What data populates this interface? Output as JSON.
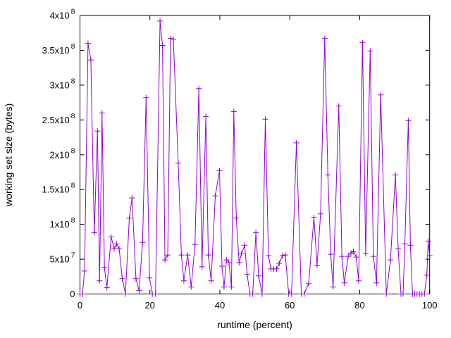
{
  "figure": {
    "background": "#ffffff",
    "axis_color": "#000000"
  },
  "chart_data": {
    "type": "line",
    "title": "",
    "xlabel": "runtime (percent)",
    "ylabel": "working set size (bytes)",
    "xlim": [
      0,
      100
    ],
    "ylim": [
      0,
      400000000.0
    ],
    "grid": false,
    "legend": "none",
    "line_color": "#9400d3",
    "marker": "plus",
    "x_ticks": [
      {
        "v": 0,
        "label": "0"
      },
      {
        "v": 20,
        "label": "20"
      },
      {
        "v": 40,
        "label": "40"
      },
      {
        "v": 60,
        "label": "60"
      },
      {
        "v": 80,
        "label": "80"
      },
      {
        "v": 100,
        "label": "100"
      }
    ],
    "y_ticks": [
      {
        "v": 0,
        "label": "0"
      },
      {
        "v": 50000000.0,
        "label": "5x10^7"
      },
      {
        "v": 100000000.0,
        "label": "1x10^8"
      },
      {
        "v": 150000000.0,
        "label": "1.5x10^8"
      },
      {
        "v": 200000000.0,
        "label": "2x10^8"
      },
      {
        "v": 250000000.0,
        "label": "2.5x10^8"
      },
      {
        "v": 300000000.0,
        "label": "3x10^8"
      },
      {
        "v": 350000000.0,
        "label": "3.5x10^8"
      },
      {
        "v": 400000000.0,
        "label": "4x10^8"
      }
    ],
    "series": [
      {
        "name": "working set size",
        "points": [
          [
            0,
            0
          ],
          [
            0.7,
            0
          ],
          [
            1.3,
            33000000.0
          ],
          [
            2.3,
            360000000.0
          ],
          [
            3.1,
            336000000.0
          ],
          [
            4.1,
            88000000.0
          ],
          [
            5.0,
            234000000.0
          ],
          [
            5.6,
            19000000.0
          ],
          [
            6.3,
            260000000.0
          ],
          [
            7.0,
            38000000.0
          ],
          [
            7.7,
            9000000.0
          ],
          [
            8.9,
            82000000.0
          ],
          [
            9.8,
            65000000.0
          ],
          [
            10.5,
            72000000.0
          ],
          [
            11.2,
            65000000.0
          ],
          [
            12.1,
            22000000.0
          ],
          [
            13.0,
            0
          ],
          [
            14.1,
            109000000.0
          ],
          [
            14.9,
            138000000.0
          ],
          [
            16.0,
            22000000.0
          ],
          [
            16.9,
            5000000.0
          ],
          [
            17.9,
            74000000.0
          ],
          [
            18.9,
            282000000.0
          ],
          [
            19.9,
            23000000.0
          ],
          [
            20.7,
            0
          ],
          [
            21.6,
            0
          ],
          [
            22.9,
            392000000.0
          ],
          [
            23.6,
            357000000.0
          ],
          [
            24.3,
            49000000.0
          ],
          [
            25.1,
            56000000.0
          ],
          [
            25.9,
            367000000.0
          ],
          [
            26.7,
            366000000.0
          ],
          [
            28.1,
            188000000.0
          ],
          [
            29.0,
            56000000.0
          ],
          [
            29.7,
            19000000.0
          ],
          [
            30.8,
            56000000.0
          ],
          [
            31.8,
            10000000.0
          ],
          [
            32.9,
            71000000.0
          ],
          [
            34.0,
            295000000.0
          ],
          [
            34.9,
            39000000.0
          ],
          [
            36.0,
            255000000.0
          ],
          [
            36.7,
            56000000.0
          ],
          [
            37.5,
            19000000.0
          ],
          [
            38.7,
            141000000.0
          ],
          [
            39.9,
            177000000.0
          ],
          [
            40.6,
            40000000.0
          ],
          [
            41.2,
            10000000.0
          ],
          [
            41.9,
            49000000.0
          ],
          [
            42.6,
            45000000.0
          ],
          [
            43.3,
            10000000.0
          ],
          [
            44.0,
            262000000.0
          ],
          [
            44.7,
            109000000.0
          ],
          [
            45.5,
            45000000.0
          ],
          [
            46.2,
            58000000.0
          ],
          [
            47.1,
            70000000.0
          ],
          [
            47.8,
            28000000.0
          ],
          [
            48.6,
            0
          ],
          [
            49.4,
            0
          ],
          [
            50.3,
            88000000.0
          ],
          [
            51.1,
            26000000.0
          ],
          [
            52.1,
            0
          ],
          [
            53.0,
            251000000.0
          ],
          [
            53.9,
            55000000.0
          ],
          [
            54.6,
            36000000.0
          ],
          [
            55.4,
            36000000.0
          ],
          [
            56.2,
            36000000.0
          ],
          [
            57.0,
            44000000.0
          ],
          [
            57.9,
            55000000.0
          ],
          [
            58.7,
            56000000.0
          ],
          [
            59.7,
            0
          ],
          [
            60.5,
            0
          ],
          [
            61.9,
            217000000.0
          ],
          [
            63.3,
            0
          ],
          [
            64.1,
            0
          ],
          [
            65.4,
            15000000.0
          ],
          [
            66.9,
            110000000.0
          ],
          [
            67.8,
            41000000.0
          ],
          [
            68.8,
            115000000.0
          ],
          [
            70.0,
            367000000.0
          ],
          [
            70.9,
            171000000.0
          ],
          [
            71.7,
            57000000.0
          ],
          [
            72.4,
            10000000.0
          ],
          [
            74.0,
            270000000.0
          ],
          [
            74.9,
            54000000.0
          ],
          [
            75.6,
            16000000.0
          ],
          [
            76.7,
            54000000.0
          ],
          [
            77.5,
            59000000.0
          ],
          [
            78.2,
            61000000.0
          ],
          [
            79.0,
            53000000.0
          ],
          [
            79.7,
            19000000.0
          ],
          [
            80.8,
            361000000.0
          ],
          [
            81.7,
            58000000.0
          ],
          [
            83.0,
            349000000.0
          ],
          [
            83.9,
            54000000.0
          ],
          [
            84.8,
            16000000.0
          ],
          [
            86.0,
            286000000.0
          ],
          [
            87.6,
            0
          ],
          [
            88.8,
            49000000.0
          ],
          [
            90.2,
            171000000.0
          ],
          [
            91.0,
            65000000.0
          ],
          [
            91.8,
            0
          ],
          [
            92.4,
            0
          ],
          [
            92.9,
            72000000.0
          ],
          [
            93.9,
            249000000.0
          ],
          [
            94.5,
            70000000.0
          ],
          [
            95.1,
            0
          ],
          [
            95.7,
            0
          ],
          [
            96.4,
            0
          ],
          [
            97.1,
            0
          ],
          [
            97.8,
            0
          ],
          [
            98.5,
            0
          ],
          [
            99.2,
            27000000.0
          ],
          [
            99.6,
            76000000.0
          ],
          [
            100,
            55000000.0
          ]
        ]
      }
    ]
  }
}
